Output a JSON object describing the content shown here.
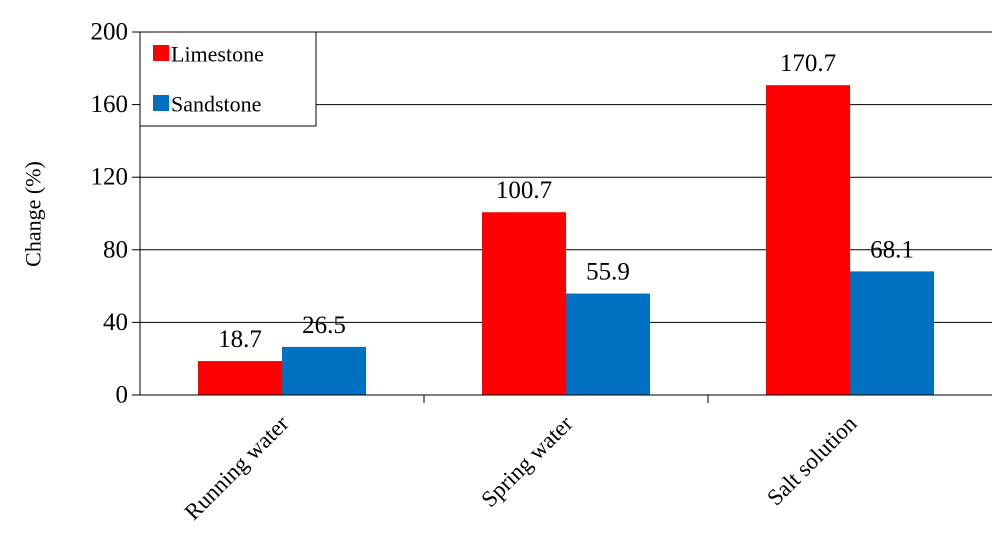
{
  "chart_data": {
    "type": "bar",
    "categories": [
      "Running water",
      "Spring water",
      "Salt solution"
    ],
    "series": [
      {
        "name": "Limestone",
        "values": [
          18.7,
          100.7,
          170.7
        ],
        "color": "#ff0000"
      },
      {
        "name": "Sandstone",
        "values": [
          26.5,
          55.9,
          68.1
        ],
        "color": "#0070c0"
      }
    ],
    "data_labels": [
      [
        "18.7",
        "100.7",
        "170.7"
      ],
      [
        "26.5",
        "55.9",
        "68.1"
      ]
    ],
    "ylabel": "Change (%)",
    "xlabel": "",
    "ylim": [
      0,
      200
    ],
    "yticks": [
      0,
      40,
      80,
      120,
      160,
      200
    ],
    "grid": true,
    "legend_position": "top-left"
  }
}
